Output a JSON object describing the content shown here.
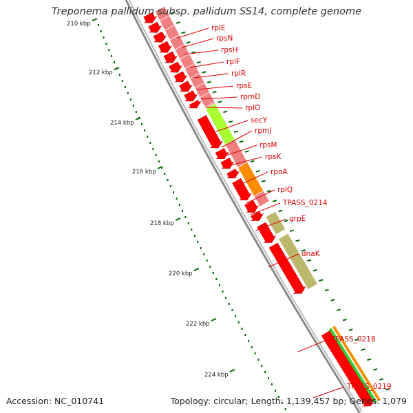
{
  "title": "Treponema pallidum subsp. pallidum SS14, complete genome",
  "footer": {
    "accession": "Accession: NC_010741",
    "summary": "Topology: circular; Length: 1,139,457 bp; Genes: 1,079"
  },
  "colors": {
    "cds": "#ff0000",
    "ribosomal": "#f08080",
    "secretion": "#aaff33",
    "transcription": "#ff8c00",
    "chaperone": "#bdb76b",
    "green_feature": "#33cc33",
    "tick": "#006600",
    "backbone": "#888888",
    "label": "#e00000"
  },
  "scale_labels": [
    "210 kbp",
    "212 kbp",
    "214 kbp",
    "216 kbp",
    "218 kbp",
    "220 kbp",
    "222 kbp",
    "224 kbp"
  ],
  "gene_labels": [
    "rplE",
    "rpsN",
    "rpsH",
    "rplF",
    "rplR",
    "rpsE",
    "rpmD",
    "rplO",
    "secY",
    "rpmJ",
    "rpsM",
    "rpsK",
    "rpoA",
    "rplQ",
    "TPASS_0214",
    "grpE",
    "dnaK",
    "TPASS_0218",
    "TPASS_0219"
  ]
}
